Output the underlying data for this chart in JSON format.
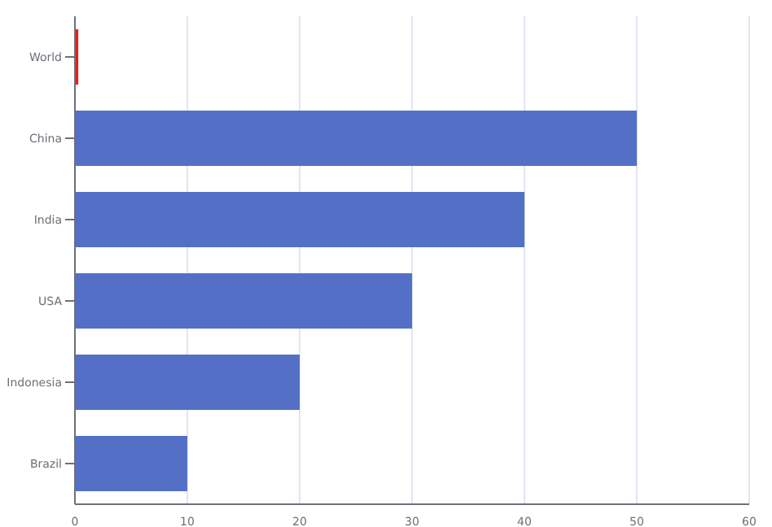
{
  "chart_data": {
    "type": "bar",
    "orientation": "horizontal",
    "categories": [
      "World",
      "China",
      "India",
      "USA",
      "Indonesia",
      "Brazil"
    ],
    "values": [
      0.3,
      50,
      40,
      30,
      20,
      10
    ],
    "colors": [
      "#e0201b",
      "#5470c6",
      "#5470c6",
      "#5470c6",
      "#5470c6",
      "#5470c6"
    ],
    "xlim": [
      0,
      60
    ],
    "xticks": [
      0,
      10,
      20,
      30,
      40,
      50,
      60
    ],
    "grid": "x"
  }
}
